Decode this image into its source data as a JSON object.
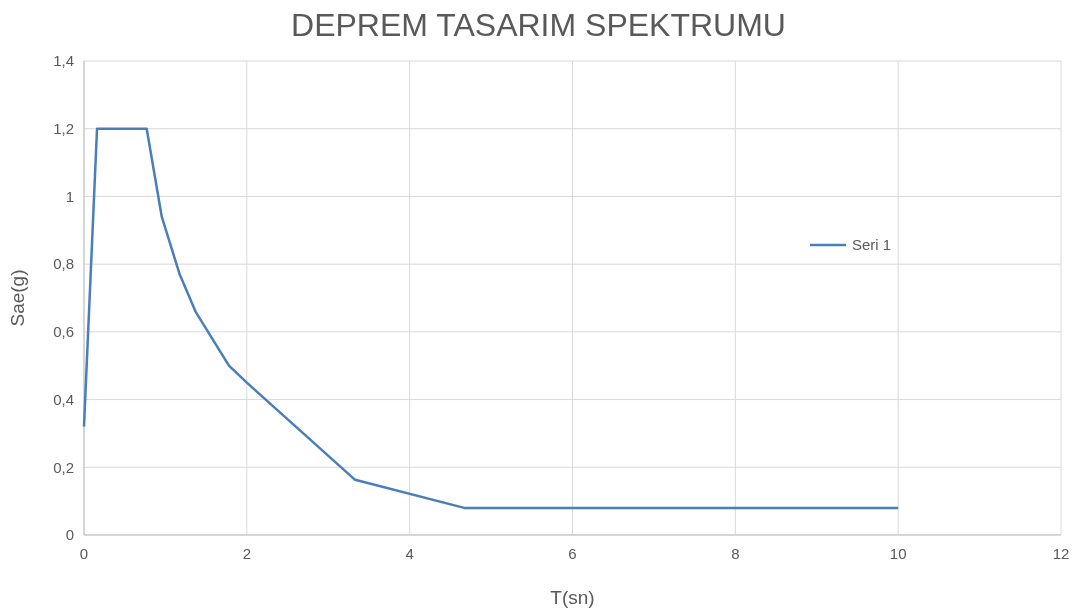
{
  "chart_data": {
    "type": "line",
    "title": "DEPREM TASARIM SPEKTRUMU",
    "xlabel": "T(sn)",
    "ylabel": "Sae(g)",
    "x": [
      0,
      0.16,
      0.77,
      0.955,
      1.175,
      1.37,
      1.78,
      2,
      3.33,
      4.67,
      10
    ],
    "series": [
      {
        "name": "Seri 1",
        "color": "#4a7ebb",
        "values": [
          0.32,
          1.2,
          1.2,
          0.94,
          0.77,
          0.66,
          0.5,
          0.45,
          0.163,
          0.08,
          0.08
        ]
      }
    ],
    "xlim": [
      0,
      12
    ],
    "xticks": [
      0,
      2,
      4,
      6,
      8,
      10,
      12
    ],
    "ylim": [
      0,
      1.4
    ],
    "yticks": [
      {
        "value": 0,
        "label": "0"
      },
      {
        "value": 0.2,
        "label": "0,2"
      },
      {
        "value": 0.4,
        "label": "0,4"
      },
      {
        "value": 0.6,
        "label": "0,6"
      },
      {
        "value": 0.8,
        "label": "0,8"
      },
      {
        "value": 1,
        "label": "1"
      },
      {
        "value": 1.2,
        "label": "1,2"
      },
      {
        "value": 1.4,
        "label": "1,4"
      }
    ],
    "grid": true,
    "legend": "right",
    "marker": "none",
    "line_style": "solid"
  }
}
